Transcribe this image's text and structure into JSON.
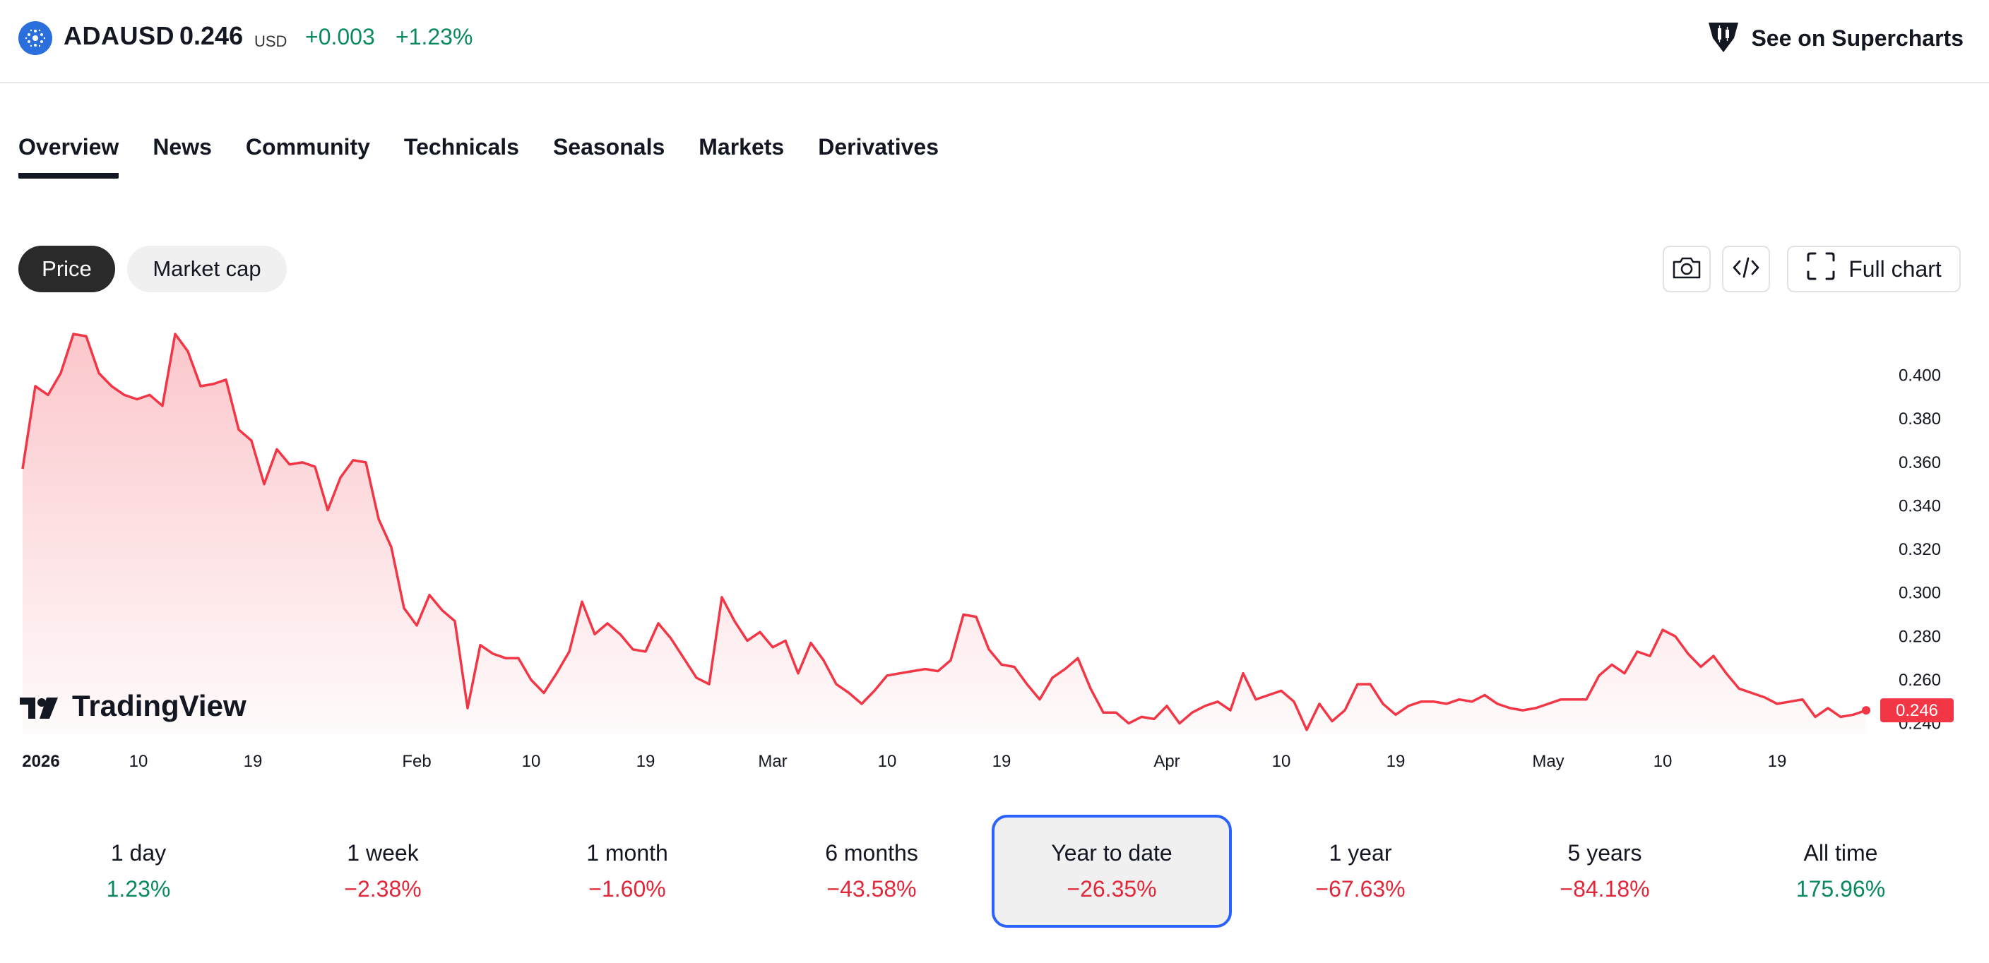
{
  "header": {
    "symbol": "ADAUSD",
    "price": "0.246",
    "currency": "USD",
    "change_abs": "+0.003",
    "change_pct": "+1.23%",
    "logo_icon": "cardano-icon",
    "supercharts_label": "See on Supercharts",
    "supercharts_icon": "supercharts-icon",
    "positive_color": "#0a8a5c"
  },
  "tabs": [
    {
      "label": "Overview",
      "active": true
    },
    {
      "label": "News"
    },
    {
      "label": "Community"
    },
    {
      "label": "Technicals"
    },
    {
      "label": "Seasonals"
    },
    {
      "label": "Markets"
    },
    {
      "label": "Derivatives"
    }
  ],
  "chart_controls": {
    "price_label": "Price",
    "market_cap_label": "Market cap",
    "screenshot_icon": "camera-icon",
    "embed_icon": "code-icon",
    "full_chart_label": "Full chart",
    "full_chart_icon": "fullscreen-icon"
  },
  "watermark": "TradingView",
  "chart_data": {
    "type": "area",
    "line_color": "#f23645",
    "x_ticks": [
      "2026",
      "10",
      "19",
      "Feb",
      "10",
      "19",
      "Mar",
      "10",
      "19",
      "Apr",
      "10",
      "19",
      "May",
      "10",
      "19"
    ],
    "y_ticks": [
      "0.400",
      "0.380",
      "0.360",
      "0.340",
      "0.320",
      "0.300",
      "0.280",
      "0.260",
      "0.240"
    ],
    "ylim": [
      0.235,
      0.42
    ],
    "last_price_label": "0.246",
    "values": [
      0.357,
      0.395,
      0.391,
      0.401,
      0.419,
      0.418,
      0.401,
      0.395,
      0.391,
      0.389,
      0.391,
      0.386,
      0.419,
      0.411,
      0.395,
      0.396,
      0.398,
      0.375,
      0.37,
      0.35,
      0.366,
      0.359,
      0.36,
      0.358,
      0.338,
      0.353,
      0.361,
      0.36,
      0.334,
      0.321,
      0.293,
      0.285,
      0.299,
      0.292,
      0.287,
      0.247,
      0.276,
      0.272,
      0.27,
      0.27,
      0.26,
      0.254,
      0.263,
      0.273,
      0.296,
      0.281,
      0.286,
      0.281,
      0.274,
      0.273,
      0.286,
      0.279,
      0.27,
      0.261,
      0.258,
      0.298,
      0.287,
      0.278,
      0.282,
      0.275,
      0.278,
      0.263,
      0.277,
      0.269,
      0.258,
      0.254,
      0.249,
      0.255,
      0.262,
      0.263,
      0.264,
      0.265,
      0.264,
      0.269,
      0.29,
      0.289,
      0.274,
      0.267,
      0.266,
      0.258,
      0.251,
      0.261,
      0.265,
      0.27,
      0.256,
      0.245,
      0.245,
      0.24,
      0.243,
      0.242,
      0.248,
      0.24,
      0.245,
      0.248,
      0.25,
      0.246,
      0.263,
      0.251,
      0.253,
      0.255,
      0.25,
      0.237,
      0.249,
      0.241,
      0.246,
      0.258,
      0.258,
      0.249,
      0.244,
      0.248,
      0.25,
      0.25,
      0.249,
      0.251,
      0.25,
      0.253,
      0.249,
      0.247,
      0.246,
      0.247,
      0.249,
      0.251,
      0.251,
      0.251,
      0.262,
      0.267,
      0.263,
      0.273,
      0.271,
      0.283,
      0.28,
      0.272,
      0.266,
      0.271,
      0.263,
      0.256,
      0.254,
      0.252,
      0.249,
      0.25,
      0.251,
      0.243,
      0.247,
      0.243,
      0.244,
      0.246
    ]
  },
  "periods": [
    {
      "label": "1 day",
      "value": "1.23%",
      "trend": "pos"
    },
    {
      "label": "1 week",
      "value": "−2.38%",
      "trend": "neg"
    },
    {
      "label": "1 month",
      "value": "−1.60%",
      "trend": "neg"
    },
    {
      "label": "6 months",
      "value": "−43.58%",
      "trend": "neg"
    },
    {
      "label": "Year to date",
      "value": "−26.35%",
      "trend": "neg",
      "active": true
    },
    {
      "label": "1 year",
      "value": "−67.63%",
      "trend": "neg"
    },
    {
      "label": "5 years",
      "value": "−84.18%",
      "trend": "neg"
    },
    {
      "label": "All time",
      "value": "175.96%",
      "trend": "pos"
    }
  ]
}
